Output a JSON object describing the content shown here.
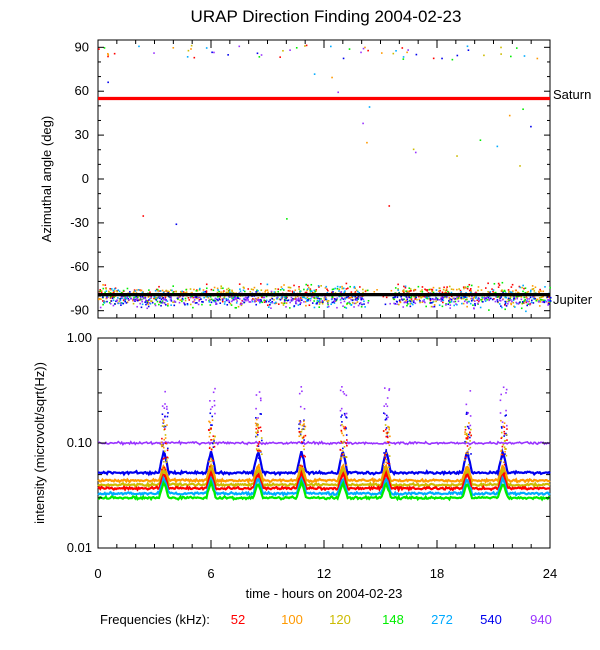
{
  "chart_data": [
    {
      "type": "scatter",
      "title": "URAP Direction Finding  2004-02-23",
      "ylabel": "Azimuthal angle (deg)",
      "xlabel": "",
      "xlim": [
        0,
        24
      ],
      "ylim": [
        -95,
        95
      ],
      "yticks": [
        90,
        60,
        30,
        0,
        -30,
        -60,
        -90
      ],
      "ytick_labels": [
        "90",
        "60",
        "30",
        "0",
        "-30",
        "-60",
        "-90"
      ],
      "reference_lines": [
        {
          "name": "Saturn",
          "y": 55,
          "color": "#ff0000"
        },
        {
          "name": "Jupiter",
          "y": -79,
          "color": "#000000"
        }
      ],
      "series": [
        {
          "name": "52",
          "cluster_center": -78,
          "cluster_spread": 5
        },
        {
          "name": "100",
          "cluster_center": -79,
          "cluster_spread": 5
        },
        {
          "name": "120",
          "cluster_center": -79,
          "cluster_spread": 5
        },
        {
          "name": "148",
          "cluster_center": -80,
          "cluster_spread": 6
        },
        {
          "name": "272",
          "cluster_center": -80,
          "cluster_spread": 6
        },
        {
          "name": "540",
          "cluster_center": -82,
          "cluster_spread": 4
        },
        {
          "name": "940",
          "cluster_center": -82,
          "cluster_spread": 4
        }
      ]
    },
    {
      "type": "line",
      "ylabel": "intensity (microvolt/sqrt(Hz))",
      "xlabel": "time - hours on 2004-02-23",
      "xlim": [
        0,
        24
      ],
      "xticks": [
        0,
        6,
        12,
        18,
        24
      ],
      "xtick_labels": [
        "0",
        "6",
        "12",
        "18",
        "24"
      ],
      "yscale": "log",
      "ylim": [
        0.01,
        1.0
      ],
      "ytick_labels": [
        "1.00",
        "0.10",
        "0.01"
      ],
      "series": [
        {
          "name": "940",
          "baseline": 0.1
        },
        {
          "name": "540",
          "baseline": 0.052
        },
        {
          "name": "100",
          "baseline": 0.044
        },
        {
          "name": "120",
          "baseline": 0.04
        },
        {
          "name": "52",
          "baseline": 0.037
        },
        {
          "name": "272",
          "baseline": 0.033
        },
        {
          "name": "148",
          "baseline": 0.03
        }
      ],
      "bursts_hours": [
        3.5,
        6.0,
        8.5,
        10.8,
        13.0,
        15.3,
        19.6,
        21.5
      ]
    }
  ],
  "legend": {
    "label": "Frequencies (kHz):",
    "entries": [
      {
        "name": "52",
        "color": "#ff0000"
      },
      {
        "name": "100",
        "color": "#ff9900"
      },
      {
        "name": "120",
        "color": "#ccbb00"
      },
      {
        "name": "148",
        "color": "#00ee00"
      },
      {
        "name": "272",
        "color": "#00aaff"
      },
      {
        "name": "540",
        "color": "#0000ee"
      },
      {
        "name": "940",
        "color": "#9933ff"
      }
    ]
  }
}
